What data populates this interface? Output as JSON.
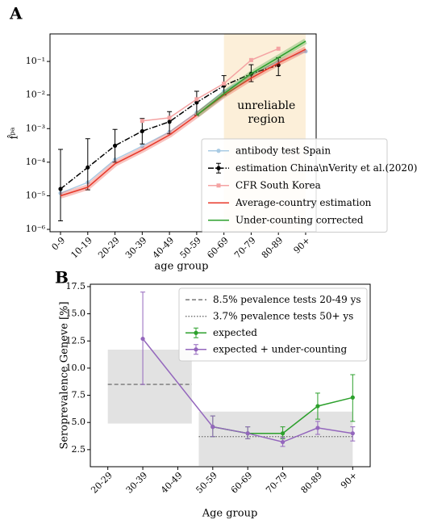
{
  "chart_data": [
    {
      "type": "line",
      "panel_label": "A",
      "ylabel": "f̂ᵖᵃ",
      "xlabel": "age group",
      "yscale": "log",
      "categories": [
        "0-9",
        "10-19",
        "20-29",
        "30-39",
        "40-49",
        "50-59",
        "60-69",
        "70-79",
        "80-89",
        "90+"
      ],
      "ylim": [
        8.5e-07,
        0.66
      ],
      "yticks": [
        {
          "value": 1e-06,
          "label": "10⁻⁶"
        },
        {
          "value": 1e-05,
          "label": "10⁻⁵"
        },
        {
          "value": 0.0001,
          "label": "10⁻⁴"
        },
        {
          "value": 0.001,
          "label": "10⁻³"
        },
        {
          "value": 0.01,
          "label": "10⁻²"
        },
        {
          "value": 0.1,
          "label": "10⁻¹"
        }
      ],
      "shaded_region": {
        "from": "60-69",
        "to": "90+",
        "color": "#fcefd9"
      },
      "annotation": [
        "unreliable",
        "region"
      ],
      "series": [
        {
          "name": "antibody test Spain",
          "color": "#a9cbe4",
          "style": "solid",
          "marker": "o",
          "x": [
            "0-9",
            "10-19",
            "20-29",
            "30-39",
            "40-49",
            "50-59",
            "60-69",
            "70-79",
            "80-89",
            "90+"
          ],
          "values": [
            1.2e-05,
            2.5e-05,
            0.00012,
            0.0003,
            0.0008,
            0.003,
            0.013,
            0.04,
            0.1,
            0.2
          ]
        },
        {
          "name": "estimation China\\nVerity et al.(2020)",
          "color": "#000000",
          "style": "dashdot",
          "marker": "o",
          "x": [
            "0-9",
            "10-19",
            "20-29",
            "30-39",
            "40-49",
            "50-59",
            "60-69",
            "70-79",
            "80-89"
          ],
          "values": [
            1.6e-05,
            7e-05,
            0.00031,
            0.00084,
            0.0016,
            0.006,
            0.019,
            0.043,
            0.078
          ],
          "err_lower": [
            1.8e-06,
            1.5e-05,
            0.0001,
            0.00035,
            0.0007,
            0.0025,
            0.01,
            0.025,
            0.038
          ],
          "err_upper": [
            0.00024,
            0.0005,
            0.00095,
            0.002,
            0.0032,
            0.013,
            0.038,
            0.08,
            0.13
          ]
        },
        {
          "name": "CFR South Korea",
          "color": "#f4a3a3",
          "style": "solid",
          "marker": "s",
          "x": [
            "30-39",
            "40-49",
            "50-59",
            "60-69",
            "70-79",
            "80-89"
          ],
          "values": [
            0.0017,
            0.0021,
            0.0075,
            0.022,
            0.11,
            0.24
          ]
        },
        {
          "name": "Average-country estimation",
          "color": "#e8382a",
          "style": "solid",
          "marker": "",
          "band": true,
          "x": [
            "0-9",
            "10-19",
            "20-29",
            "30-39",
            "40-49",
            "50-59",
            "60-69",
            "70-79",
            "80-89",
            "90+"
          ],
          "values": [
            1e-05,
            1.8e-05,
            9e-05,
            0.00023,
            0.00065,
            0.0025,
            0.01,
            0.032,
            0.09,
            0.23
          ]
        },
        {
          "name": "Under-counting corrected",
          "color": "#2ca02c",
          "style": "solid",
          "marker": "",
          "band": true,
          "x": [
            "50-59",
            "60-69",
            "70-79",
            "80-89",
            "90+"
          ],
          "values": [
            0.0025,
            0.011,
            0.043,
            0.13,
            0.4
          ]
        }
      ]
    },
    {
      "type": "line",
      "panel_label": "B",
      "ylabel": "Seroprevalence Geneve [%]",
      "xlabel": "Age group",
      "yscale": "linear",
      "categories": [
        "20-29",
        "30-39",
        "40-49",
        "50-59",
        "60-69",
        "70-79",
        "80-89",
        "90+"
      ],
      "ylim": [
        0.93,
        17.72
      ],
      "yticks": [
        {
          "value": 2.5,
          "label": "2.5"
        },
        {
          "value": 5,
          "label": "5.0"
        },
        {
          "value": 7.5,
          "label": "7.5"
        },
        {
          "value": 10,
          "label": "10.0"
        },
        {
          "value": 12.5,
          "label": "12.5"
        },
        {
          "value": 15,
          "label": "15.0"
        },
        {
          "value": 17.5,
          "label": "17.5"
        }
      ],
      "reference_lines": [
        {
          "name": "8.5% pevalence tests 20-49 ys",
          "value": 8.5,
          "range": [
            4.9,
            11.7
          ],
          "span": [
            "20-29",
            "40-49"
          ],
          "style": "dashed",
          "color": "#777777"
        },
        {
          "name": "3.7% pevalence tests 50+ ys",
          "value": 3.7,
          "range": [
            1.0,
            6.0
          ],
          "span": [
            "50-59",
            "90+"
          ],
          "style": "dotted",
          "color": "#777777"
        }
      ],
      "series": [
        {
          "name": "expected",
          "color": "#2ca02c",
          "style": "solid",
          "marker": "o",
          "x": [
            "50-59",
            "60-69",
            "70-79",
            "80-89",
            "90+"
          ],
          "values": [
            4.6,
            4.0,
            4.0,
            6.5,
            7.3
          ],
          "err_lower": [
            3.7,
            3.5,
            3.5,
            5.3,
            5.1
          ],
          "err_upper": [
            5.6,
            4.6,
            4.6,
            7.7,
            9.4
          ]
        },
        {
          "name": "expected + under-counting",
          "color": "#9467bd",
          "style": "solid",
          "marker": "o",
          "x": [
            "30-39",
            "50-59",
            "60-69",
            "70-79",
            "80-89",
            "90+"
          ],
          "values": [
            12.7,
            4.6,
            4.0,
            3.2,
            4.5,
            4.0
          ],
          "err_lower": [
            8.5,
            3.7,
            3.5,
            2.8,
            3.9,
            3.3
          ],
          "err_upper": [
            17.0,
            5.6,
            4.6,
            3.6,
            5.1,
            4.6
          ]
        }
      ]
    }
  ]
}
